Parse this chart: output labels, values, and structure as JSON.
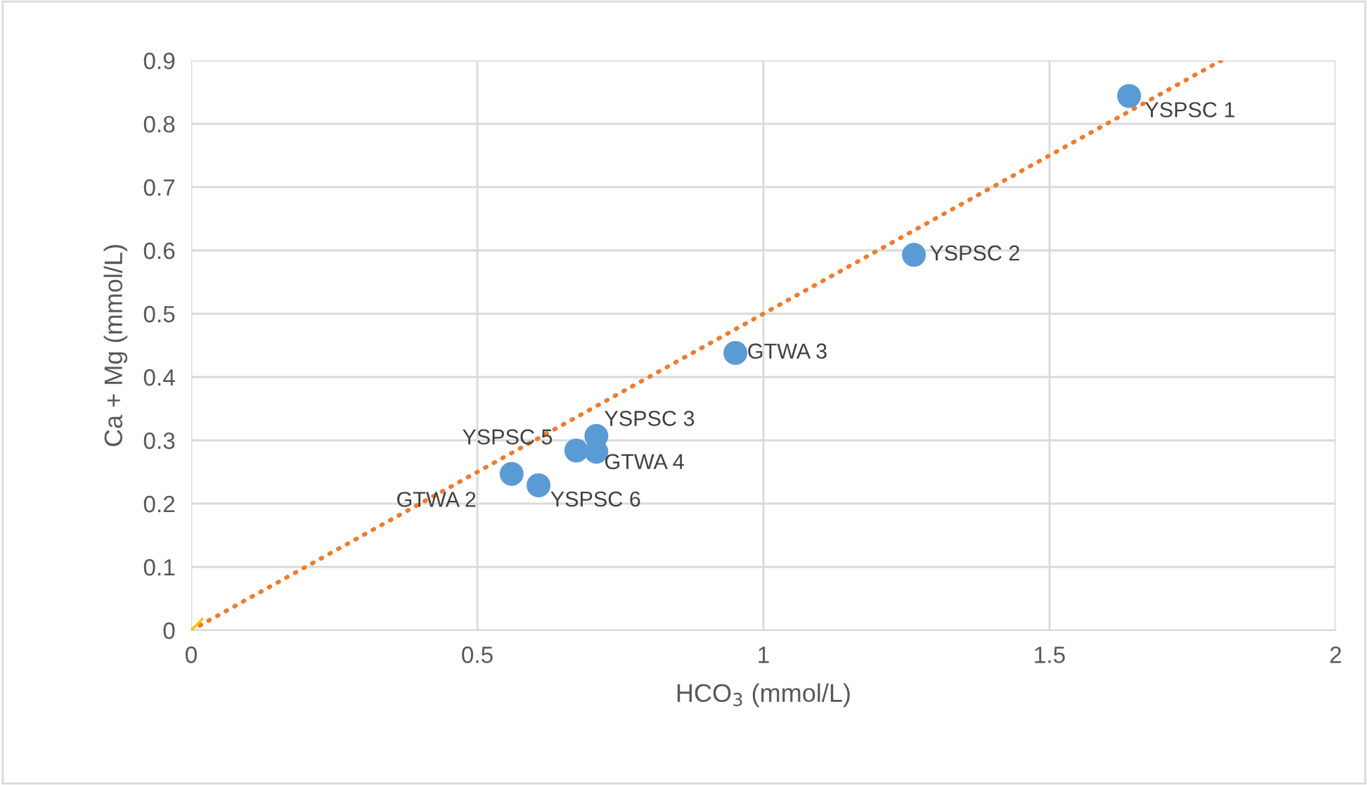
{
  "chart_data": {
    "type": "scatter",
    "xlabel": "HCO$_{3}$ (mmol/L)",
    "ylabel": "Ca + Mg (mmol/L)",
    "xlim": [
      0,
      2
    ],
    "ylim": [
      0,
      0.9
    ],
    "xticks": [
      0,
      0.5,
      1,
      1.5,
      2
    ],
    "yticks": [
      0,
      0.1,
      0.2,
      0.3,
      0.4,
      0.5,
      0.6,
      0.7,
      0.8,
      0.9
    ],
    "grid": true,
    "legend": false,
    "series": [
      {
        "type": "line",
        "color": "#ed7d31",
        "line_style": "dotted",
        "marker": "none",
        "x": [
          0,
          1.8
        ],
        "values": [
          0,
          0.9
        ]
      },
      {
        "color": "#5b9bd5",
        "marker": "circle",
        "x": [
          1.639,
          1.263,
          0.951,
          0.708,
          0.708,
          0.673,
          0.56,
          0.607
        ],
        "values": [
          0.844,
          0.593,
          0.438,
          0.307,
          0.282,
          0.284,
          0.247,
          0.229
        ],
        "value_labels": [
          "YSPSC 1",
          "YSPSC 2",
          "GTWA 3",
          "YSPSC 3",
          "GTWA 4",
          "YSPSC 5",
          "GTWA 2",
          "YSPSC 6"
        ]
      },
      {
        "color": "#ffc000",
        "marker": "cross",
        "x": [
          0
        ],
        "values": [
          0
        ]
      }
    ]
  }
}
